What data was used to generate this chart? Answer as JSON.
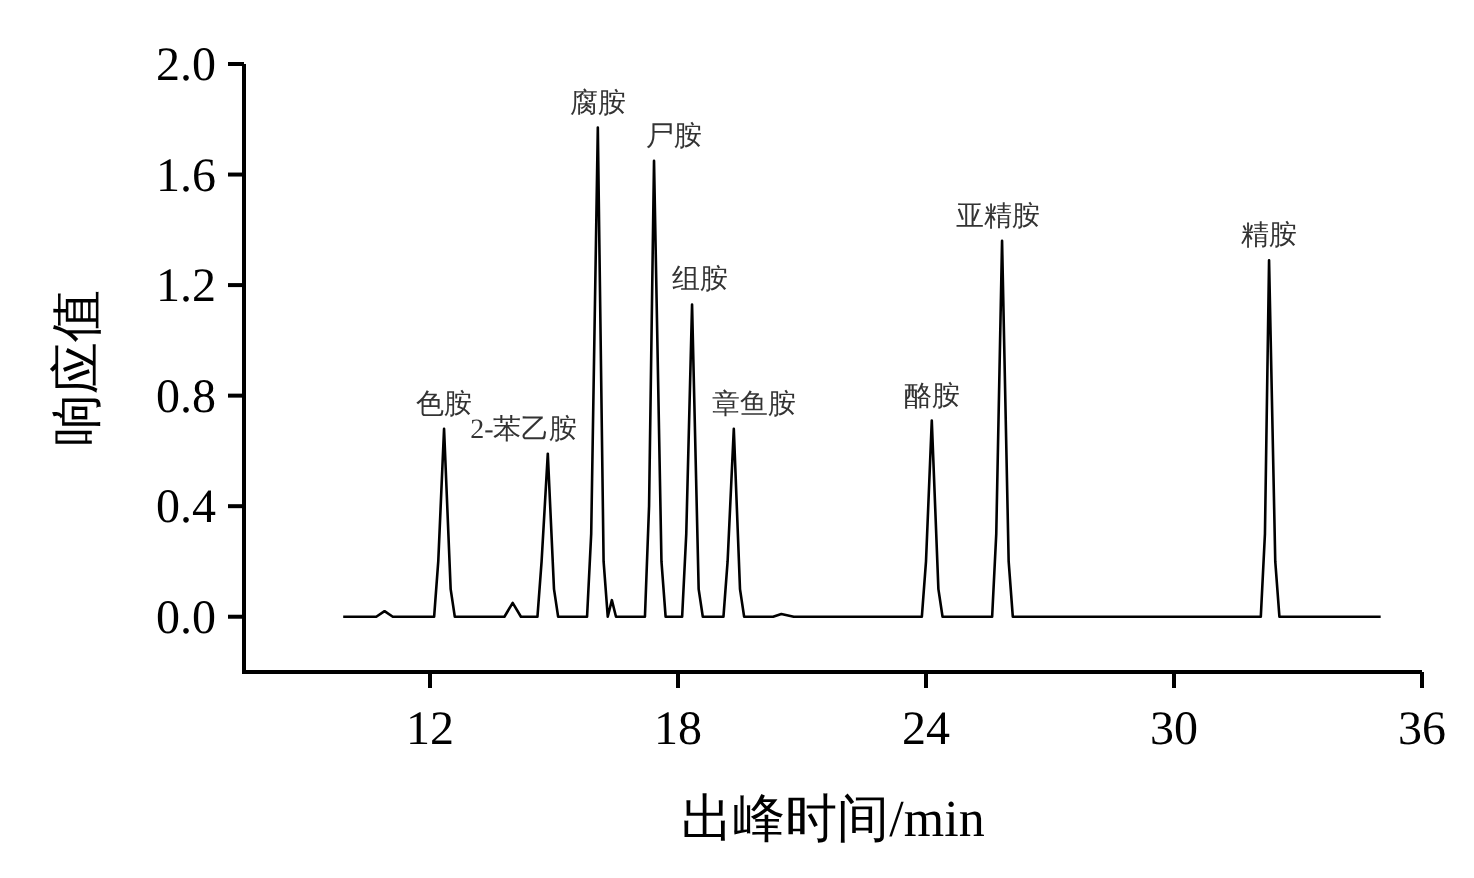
{
  "chart_data": {
    "type": "line",
    "xlabel": "出峰时间/min",
    "ylabel": "响应值",
    "xlim": [
      7.5,
      36
    ],
    "xticks": [
      12,
      18,
      24,
      30,
      36
    ],
    "ylim": [
      -0.2,
      2.0
    ],
    "yticks": [
      {
        "value": 0,
        "label": "0.0"
      },
      0.4,
      0.8,
      1.2,
      1.6,
      {
        "value": 2,
        "label": "2.0"
      }
    ],
    "grid": false,
    "marker": "none",
    "line_style": "solid",
    "series": [
      {
        "color": "#000000",
        "x": [
          9.9,
          10.7,
          10.9,
          11.1,
          12.1,
          12.2,
          12.34,
          12.5,
          12.6,
          13.8,
          14.0,
          14.2,
          14.6,
          14.7,
          14.85,
          15.0,
          15.1,
          15.8,
          15.9,
          16.06,
          16.2,
          16.3,
          16.4,
          16.5,
          17.2,
          17.3,
          17.42,
          17.6,
          17.7,
          18.1,
          18.2,
          18.34,
          18.5,
          18.6,
          19.1,
          19.2,
          19.35,
          19.5,
          19.6,
          20.3,
          20.5,
          20.8,
          23.9,
          24.0,
          24.14,
          24.3,
          24.4,
          25.6,
          25.7,
          25.84,
          26.0,
          26.1,
          32.1,
          32.2,
          32.3,
          32.45,
          32.55,
          35.0
        ],
        "values": [
          0,
          0,
          0.02,
          0,
          0,
          0.2,
          0.68,
          0.1,
          0,
          0,
          0.05,
          0,
          0,
          0.2,
          0.59,
          0.1,
          0,
          0,
          0.3,
          1.77,
          0.2,
          0,
          0.06,
          0,
          0,
          0.4,
          1.65,
          0.2,
          0,
          0,
          0.3,
          1.13,
          0.1,
          0,
          0,
          0.2,
          0.68,
          0.1,
          0,
          0,
          0.01,
          0,
          0,
          0.2,
          0.71,
          0.1,
          0,
          0,
          0.3,
          1.36,
          0.2,
          0,
          0,
          0.3,
          1.29,
          0.2,
          0,
          0
        ]
      }
    ],
    "annotations": [
      {
        "text": "色胺",
        "x": 12.34,
        "y": 0.68
      },
      {
        "text": "2-苯乙胺",
        "x": 14.85,
        "y": 0.59
      },
      {
        "text": "腐胺",
        "x": 16.06,
        "y": 1.77
      },
      {
        "text": "尸胺",
        "x": 17.42,
        "y": 1.65
      },
      {
        "text": "组胺",
        "x": 18.34,
        "y": 1.13
      },
      {
        "text": "章鱼胺",
        "x": 19.35,
        "y": 0.68
      },
      {
        "text": "酪胺",
        "x": 24.14,
        "y": 0.71
      },
      {
        "text": "亚精胺",
        "x": 25.84,
        "y": 1.36
      },
      {
        "text": "精胺",
        "x": 32.3,
        "y": 1.29
      }
    ]
  }
}
